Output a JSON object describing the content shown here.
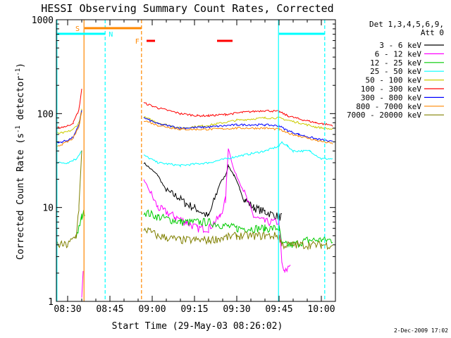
{
  "chart_data": {
    "type": "line",
    "title": "HESSI Observing Summary Count Rates, Corrected",
    "xlabel": "Start Time (29-May-03 08:26:02)",
    "ylabel": "Corrected Count Rate (s⁻¹ detector⁻¹)",
    "ylabel_parts": [
      "Corrected Count Rate (s",
      "-1",
      " detector",
      "-1",
      ")"
    ],
    "ylog": true,
    "ylim": [
      1,
      1000
    ],
    "xlim_minutes": [
      506,
      605
    ],
    "y_ticks": [
      {
        "value": 1,
        "label": "1"
      },
      {
        "value": 10,
        "label": "10"
      },
      {
        "value": 100,
        "label": "100"
      },
      {
        "value": 1000,
        "label": "1000"
      }
    ],
    "x_ticks": [
      {
        "minute": 510,
        "label": "08:30"
      },
      {
        "minute": 525,
        "label": "08:45"
      },
      {
        "minute": 540,
        "label": "09:00"
      },
      {
        "minute": 555,
        "label": "09:15"
      },
      {
        "minute": 570,
        "label": "09:30"
      },
      {
        "minute": 585,
        "label": "09:45"
      },
      {
        "minute": 600,
        "label": "10:00"
      }
    ],
    "legend_header": [
      "Det 1,3,4,5,6,9,",
      "Att 0"
    ],
    "legend_position": "right",
    "footer_date": "2-Dec-2009 17:02",
    "series": [
      {
        "name": "3 - 6 keV",
        "color": "#000000",
        "x": [
          506,
          510,
          514,
          516,
          517,
          536,
          537,
          542,
          545,
          549,
          552,
          555,
          560,
          564,
          566,
          567,
          569,
          571,
          573,
          576,
          580,
          585,
          586
        ],
        "y": [
          null,
          null,
          null,
          null,
          null,
          null,
          30,
          22,
          15,
          13,
          11,
          10,
          8,
          18,
          22,
          28,
          22,
          16,
          12,
          10,
          9,
          8,
          8
        ]
      },
      {
        "name": "6 - 12 keV",
        "color": "#ff00ff",
        "x": [
          506,
          514,
          515,
          515.5,
          536,
          537,
          542,
          548,
          552,
          556,
          560,
          564,
          566,
          567,
          569,
          572,
          576,
          580,
          585,
          586,
          587,
          589
        ],
        "y": [
          null,
          null,
          1,
          2,
          null,
          20,
          10,
          8,
          7,
          6,
          6,
          8,
          12,
          43,
          25,
          16,
          8,
          7,
          7,
          2.5,
          2,
          2.5
        ]
      },
      {
        "name": "12 - 25 keV",
        "color": "#00cc00",
        "x": [
          506,
          511,
          513,
          514,
          515,
          516,
          536,
          537,
          542,
          550,
          560,
          570,
          580,
          585,
          586,
          590,
          595,
          600,
          604
        ],
        "y": [
          null,
          null,
          5,
          6,
          8,
          9,
          null,
          9,
          8,
          7,
          7,
          6,
          6,
          6,
          4,
          4,
          4.5,
          4.5,
          4.5
        ]
      },
      {
        "name": "25 - 50 keV",
        "color": "#00ffff",
        "x": [
          506,
          510,
          513,
          515,
          516,
          536,
          537,
          542,
          550,
          560,
          570,
          580,
          585,
          586,
          588,
          590,
          596,
          600,
          604
        ],
        "y": [
          30,
          30,
          33,
          40,
          null,
          null,
          36,
          30,
          28,
          30,
          35,
          40,
          45,
          50,
          45,
          40,
          40,
          33,
          33
        ]
      },
      {
        "name": "50 - 100 keV",
        "color": "#cccc00",
        "x": [
          506,
          508,
          510,
          512,
          514,
          515,
          536,
          537,
          542,
          550,
          560,
          570,
          580,
          585,
          588,
          592,
          598,
          604
        ],
        "y": [
          62,
          62,
          64,
          68,
          80,
          110,
          null,
          92,
          80,
          70,
          75,
          85,
          90,
          90,
          85,
          80,
          72,
          68
        ]
      },
      {
        "name": "100 - 300 keV",
        "color": "#ff0000",
        "x": [
          506,
          508,
          510,
          512,
          514,
          515,
          536,
          537,
          542,
          550,
          556,
          560,
          566,
          572,
          580,
          585,
          588,
          592,
          598,
          604
        ],
        "y": [
          70,
          72,
          74,
          80,
          110,
          185,
          null,
          130,
          115,
          100,
          95,
          95,
          98,
          103,
          108,
          105,
          95,
          88,
          80,
          75
        ]
      },
      {
        "name": "300 - 800 keV",
        "color": "#0000ff",
        "x": [
          506,
          508,
          510,
          512,
          514,
          515,
          536,
          537,
          542,
          550,
          560,
          570,
          580,
          585,
          588,
          592,
          598,
          604
        ],
        "y": [
          48,
          50,
          52,
          56,
          75,
          110,
          null,
          90,
          78,
          70,
          72,
          76,
          76,
          74,
          66,
          60,
          54,
          50
        ]
      },
      {
        "name": "800 - 7000 keV",
        "color": "#ff8800",
        "x": [
          506,
          508,
          510,
          512,
          514,
          515,
          536,
          537,
          542,
          550,
          560,
          570,
          580,
          585,
          588,
          592,
          598,
          604
        ],
        "y": [
          45,
          47,
          50,
          55,
          72,
          105,
          null,
          85,
          75,
          68,
          68,
          70,
          70,
          68,
          62,
          58,
          52,
          48
        ]
      },
      {
        "name": "7000 - 20000 keV",
        "color": "#808000",
        "x": [
          506,
          510,
          513,
          514,
          515,
          536,
          537,
          542,
          550,
          560,
          570,
          580,
          585,
          586,
          590,
          596,
          600,
          604
        ],
        "y": [
          4,
          4,
          5,
          10,
          40,
          null,
          6,
          5,
          4.5,
          4.5,
          5,
          5,
          5,
          4,
          4,
          4,
          4,
          4
        ]
      }
    ],
    "markers": {
      "verticals": [
        {
          "minute": 506.2,
          "color": "#00ffff",
          "dash": false
        },
        {
          "minute": 515.8,
          "color": "#ff8800",
          "dash": false
        },
        {
          "minute": 523.3,
          "color": "#00ffff",
          "dash": true
        },
        {
          "minute": 536.2,
          "color": "#ff8800",
          "dash": true
        },
        {
          "minute": 584.8,
          "color": "#00ffff",
          "dash": false
        },
        {
          "minute": 601.2,
          "color": "#00ffff",
          "dash": true
        }
      ],
      "bars": [
        {
          "label": "S",
          "color": "#ff8800",
          "from": 516,
          "to": 536.2
        },
        {
          "label": "N",
          "color": "#00ffff",
          "from": 506,
          "to": 523.3
        },
        {
          "label": "",
          "color": "#00ffff",
          "from": 585,
          "to": 601.2
        }
      ],
      "flare_label": {
        "text": "F",
        "color": "#ff8800",
        "minute": 536.2
      },
      "flare_bars": [
        {
          "color": "#ff0000",
          "from": 538,
          "to": 541
        },
        {
          "color": "#ff0000",
          "from": 563,
          "to": 568.5
        }
      ]
    }
  }
}
